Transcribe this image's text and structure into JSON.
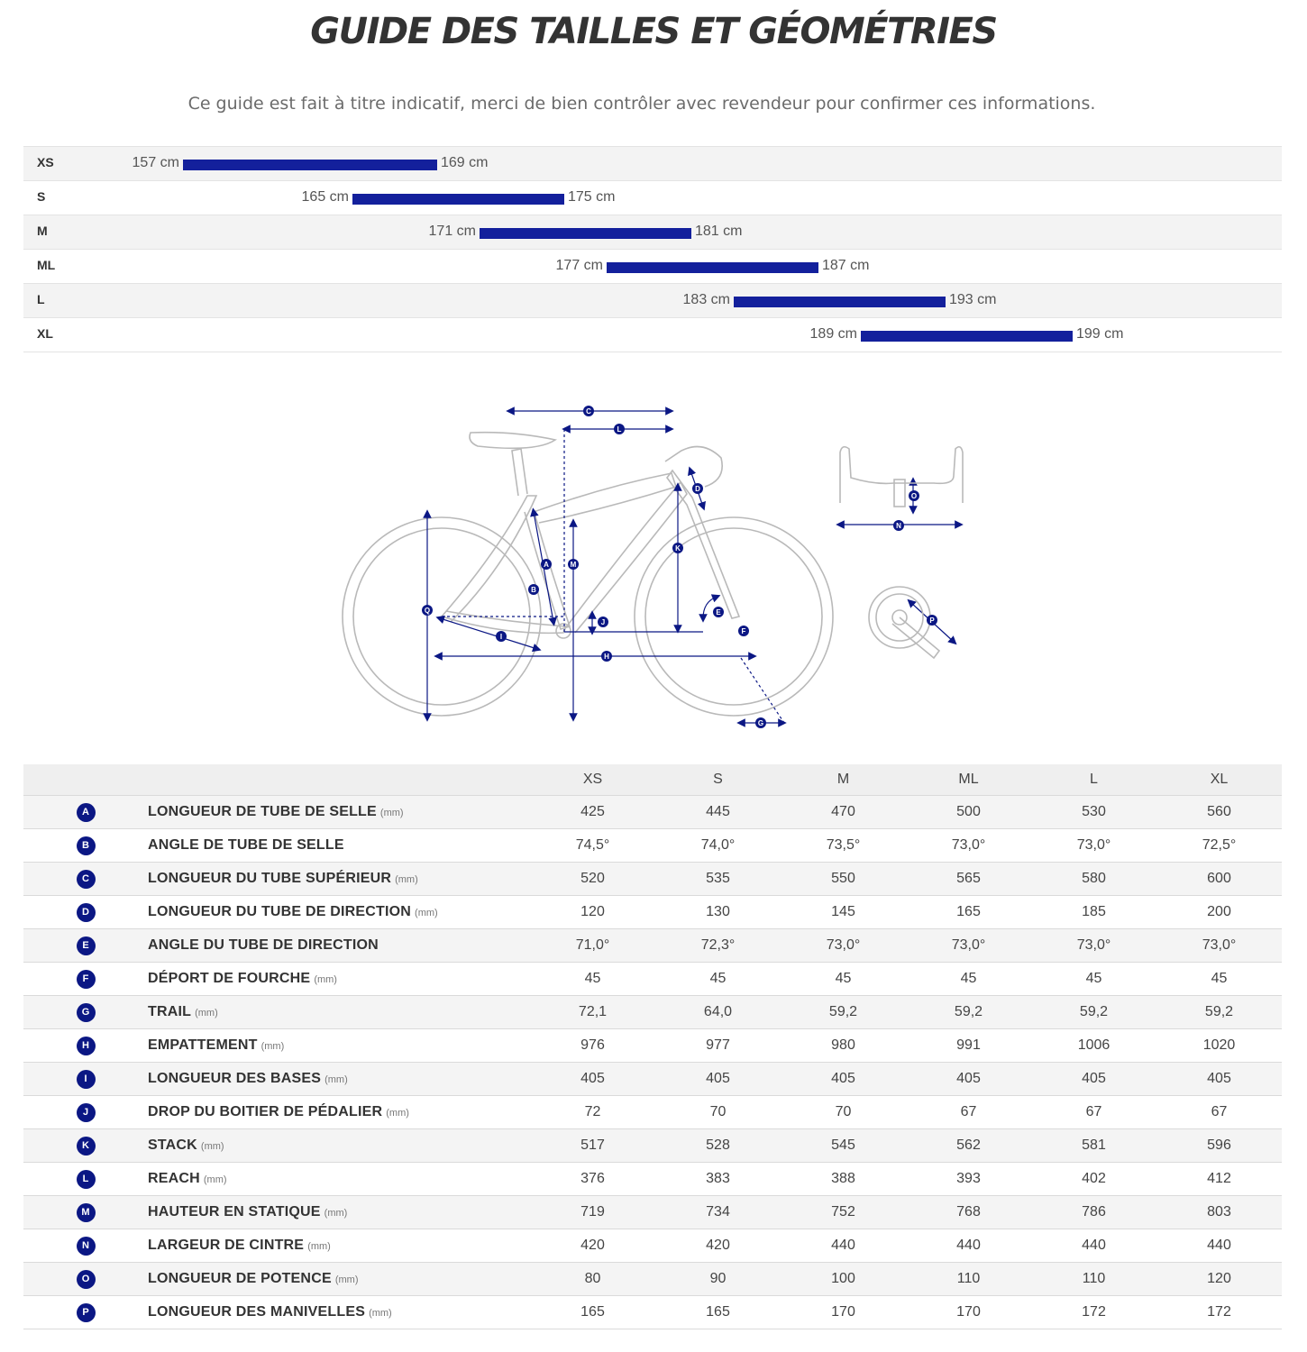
{
  "page": {
    "title": "GUIDE DES TAILLES ET GÉOMÉTRIES",
    "subtitle": "Ce guide est fait à titre indicatif, merci de bien contrôler avec revendeur pour confirmer ces informations."
  },
  "colors": {
    "accent": "#13209c",
    "badge": "#0b1784",
    "row_alt": "#f3f3f3",
    "text": "#333333"
  },
  "size_ranges": [
    {
      "size": "XS",
      "min": 157,
      "max": 169,
      "min_label": "157 cm",
      "max_label": "169 cm"
    },
    {
      "size": "S",
      "min": 165,
      "max": 175,
      "min_label": "165 cm",
      "max_label": "175 cm"
    },
    {
      "size": "M",
      "min": 171,
      "max": 181,
      "min_label": "171 cm",
      "max_label": "181 cm"
    },
    {
      "size": "ML",
      "min": 177,
      "max": 187,
      "min_label": "177 cm",
      "max_label": "187 cm"
    },
    {
      "size": "L",
      "min": 183,
      "max": 193,
      "min_label": "183 cm",
      "max_label": "193 cm"
    },
    {
      "size": "XL",
      "min": 189,
      "max": 199,
      "min_label": "189 cm",
      "max_label": "199 cm"
    }
  ],
  "diagram": {
    "labels": [
      "A",
      "B",
      "C",
      "D",
      "E",
      "F",
      "G",
      "H",
      "I",
      "J",
      "K",
      "L",
      "M",
      "N",
      "O",
      "P",
      "Q"
    ],
    "icon": "bike-geometry-diagram"
  },
  "geometry": {
    "columns": [
      "XS",
      "S",
      "M",
      "ML",
      "L",
      "XL"
    ],
    "rows": [
      {
        "letter": "A",
        "name": "LONGUEUR DE TUBE DE SELLE",
        "unit": "(mm)",
        "values": [
          "425",
          "445",
          "470",
          "500",
          "530",
          "560"
        ]
      },
      {
        "letter": "B",
        "name": "ANGLE DE TUBE DE SELLE",
        "unit": "",
        "values": [
          "74,5°",
          "74,0°",
          "73,5°",
          "73,0°",
          "73,0°",
          "72,5°"
        ]
      },
      {
        "letter": "C",
        "name": "LONGUEUR DU TUBE SUPÉRIEUR",
        "unit": "(mm)",
        "values": [
          "520",
          "535",
          "550",
          "565",
          "580",
          "600"
        ]
      },
      {
        "letter": "D",
        "name": "LONGUEUR DU TUBE DE DIRECTION",
        "unit": "(mm)",
        "values": [
          "120",
          "130",
          "145",
          "165",
          "185",
          "200"
        ]
      },
      {
        "letter": "E",
        "name": "ANGLE DU TUBE DE DIRECTION",
        "unit": "",
        "values": [
          "71,0°",
          "72,3°",
          "73,0°",
          "73,0°",
          "73,0°",
          "73,0°"
        ]
      },
      {
        "letter": "F",
        "name": "DÉPORT DE FOURCHE",
        "unit": "(mm)",
        "values": [
          "45",
          "45",
          "45",
          "45",
          "45",
          "45"
        ]
      },
      {
        "letter": "G",
        "name": "TRAIL",
        "unit": "(mm)",
        "values": [
          "72,1",
          "64,0",
          "59,2",
          "59,2",
          "59,2",
          "59,2"
        ]
      },
      {
        "letter": "H",
        "name": "EMPATTEMENT",
        "unit": "(mm)",
        "values": [
          "976",
          "977",
          "980",
          "991",
          "1006",
          "1020"
        ]
      },
      {
        "letter": "I",
        "name": "LONGUEUR DES BASES",
        "unit": "(mm)",
        "values": [
          "405",
          "405",
          "405",
          "405",
          "405",
          "405"
        ]
      },
      {
        "letter": "J",
        "name": "DROP DU BOITIER DE PÉDALIER",
        "unit": "(mm)",
        "values": [
          "72",
          "70",
          "70",
          "67",
          "67",
          "67"
        ]
      },
      {
        "letter": "K",
        "name": "STACK",
        "unit": "(mm)",
        "values": [
          "517",
          "528",
          "545",
          "562",
          "581",
          "596"
        ]
      },
      {
        "letter": "L",
        "name": "REACH",
        "unit": "(mm)",
        "values": [
          "376",
          "383",
          "388",
          "393",
          "402",
          "412"
        ]
      },
      {
        "letter": "M",
        "name": "HAUTEUR EN STATIQUE",
        "unit": "(mm)",
        "values": [
          "719",
          "734",
          "752",
          "768",
          "786",
          "803"
        ]
      },
      {
        "letter": "N",
        "name": "LARGEUR DE CINTRE",
        "unit": "(mm)",
        "values": [
          "420",
          "420",
          "440",
          "440",
          "440",
          "440"
        ]
      },
      {
        "letter": "O",
        "name": "LONGUEUR DE POTENCE",
        "unit": "(mm)",
        "values": [
          "80",
          "90",
          "100",
          "110",
          "110",
          "120"
        ]
      },
      {
        "letter": "P",
        "name": "LONGUEUR DES MANIVELLES",
        "unit": "(mm)",
        "values": [
          "165",
          "165",
          "170",
          "170",
          "172",
          "172"
        ]
      }
    ]
  }
}
